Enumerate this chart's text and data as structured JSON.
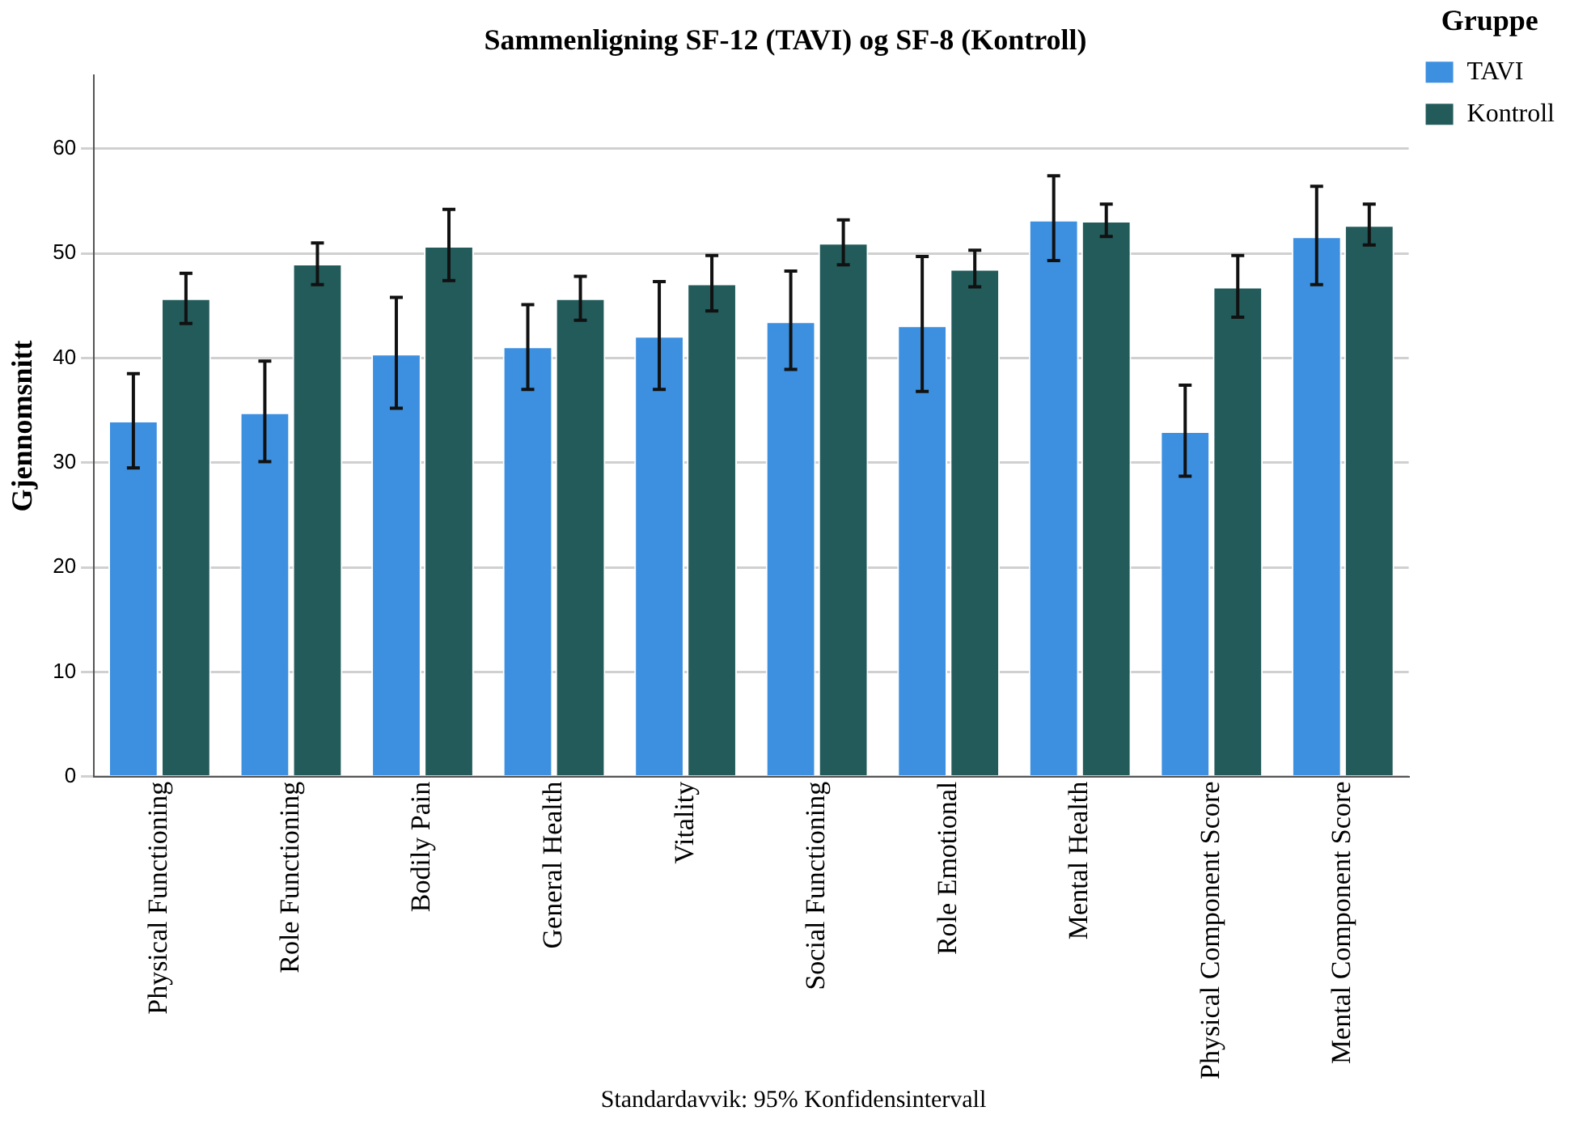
{
  "chart_data": {
    "type": "bar",
    "title": "Sammenligning SF-12 (TAVI) og SF-8 (Kontroll)",
    "ylabel": "Gjennomsnitt",
    "legend_title": "Gruppe",
    "categories": [
      "Physical Functioning",
      "Role Functioning",
      "Bodily Pain",
      "General Health",
      "Vitality",
      "Social Functioning",
      "Role Emotional",
      "Mental Health",
      "Physical Component Score",
      "Mental Component Score"
    ],
    "series": [
      {
        "name": "TAVI",
        "color": "#3d90e0",
        "values": [
          34.0,
          34.8,
          40.4,
          41.1,
          42.1,
          43.5,
          43.1,
          53.2,
          33.0,
          51.6
        ],
        "errors": [
          [
            29.5,
            38.5
          ],
          [
            30.1,
            39.7
          ],
          [
            35.2,
            45.8
          ],
          [
            37.0,
            45.1
          ],
          [
            37.0,
            47.3
          ],
          [
            38.9,
            48.3
          ],
          [
            36.8,
            49.7
          ],
          [
            49.3,
            57.4
          ],
          [
            28.7,
            37.4
          ],
          [
            47.0,
            56.4
          ]
        ]
      },
      {
        "name": "Kontroll",
        "color": "#235b5b",
        "values": [
          45.7,
          49.0,
          50.7,
          45.7,
          47.1,
          51.0,
          48.5,
          53.1,
          46.8,
          52.7
        ],
        "errors": [
          [
            43.3,
            48.1
          ],
          [
            47.0,
            51.0
          ],
          [
            47.4,
            54.2
          ],
          [
            43.6,
            47.8
          ],
          [
            44.5,
            49.8
          ],
          [
            48.9,
            53.2
          ],
          [
            46.8,
            50.3
          ],
          [
            51.6,
            54.7
          ],
          [
            43.9,
            49.8
          ],
          [
            50.8,
            54.7
          ]
        ]
      }
    ],
    "ylim": [
      0,
      67
    ],
    "yticks": [
      0,
      10,
      20,
      30,
      40,
      50,
      60
    ],
    "grid": "y",
    "legend": "top right",
    "annotations": [
      "Standardavvik: 95% Konfidensintervall"
    ]
  }
}
